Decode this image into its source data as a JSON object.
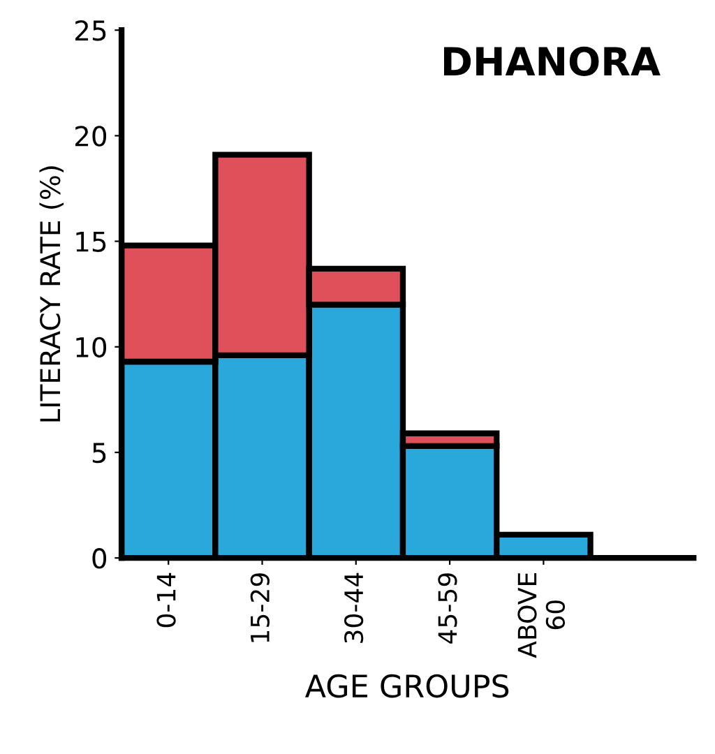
{
  "chart_data": {
    "type": "bar",
    "title": "DHANORA",
    "xlabel": "AGE GROUPS",
    "ylabel": "LITERACY RATE (%)",
    "categories": [
      "0-14",
      "15-29",
      "30-44",
      "45-59",
      "ABOVE\n60"
    ],
    "stacked": true,
    "series": [
      {
        "color": "#2aa8dc",
        "values": [
          9.3,
          9.6,
          12.0,
          5.3,
          1.1
        ]
      },
      {
        "color": "#e0505a",
        "values": [
          5.5,
          9.5,
          1.7,
          0.6,
          null
        ]
      }
    ],
    "ylim": [
      0,
      25
    ],
    "yticks": [
      0,
      5,
      10,
      15,
      20,
      25
    ],
    "grid": false,
    "legend": false
  }
}
